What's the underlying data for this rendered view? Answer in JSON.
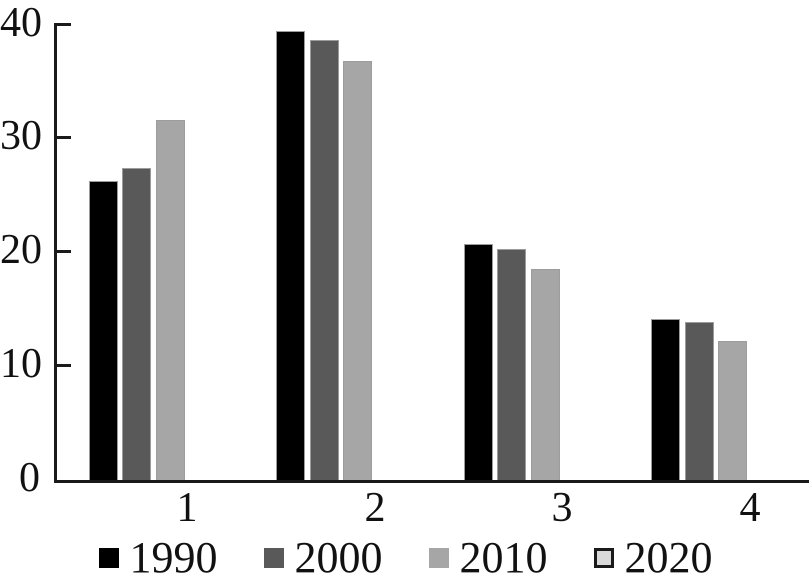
{
  "chart_data": {
    "type": "bar",
    "title": "",
    "xlabel": "",
    "ylabel": "",
    "categories": [
      "1",
      "2",
      "3",
      "4"
    ],
    "series": [
      {
        "name": "1990",
        "color": "#000000",
        "plotted": true,
        "values": [
          26.2,
          39.3,
          20.7,
          14.1
        ]
      },
      {
        "name": "2000",
        "color": "#595959",
        "plotted": true,
        "values": [
          27.3,
          38.5,
          20.2,
          13.8
        ]
      },
      {
        "name": "2010",
        "color": "#a6a6a6",
        "plotted": true,
        "values": [
          31.5,
          36.7,
          18.5,
          12.2
        ]
      },
      {
        "name": "2020",
        "color": "#d9d9d9",
        "plotted": false,
        "swatch_border": "#1a1a1a",
        "values": [
          null,
          null,
          null,
          null
        ]
      }
    ],
    "ylim": [
      0,
      40
    ],
    "yticks": [
      "0",
      "10",
      "20",
      "30",
      "40"
    ],
    "grid": false,
    "legend_position": "bottom",
    "axis_color": "#1a1a1a",
    "background_color": "#ffffff"
  }
}
